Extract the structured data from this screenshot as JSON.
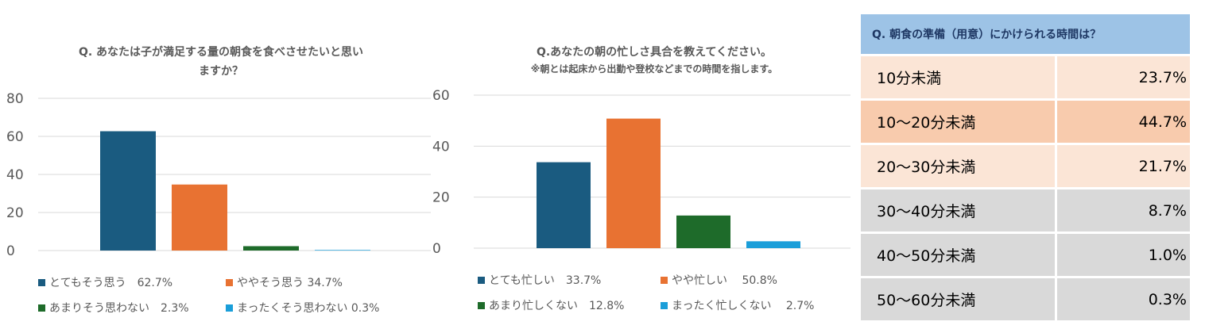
{
  "colors": {
    "navy": "#1a5b80",
    "orange": "#e87232",
    "green": "#1e6b2a",
    "cyan": "#1a9ed9",
    "row_peach": "#fbe5d6",
    "row_orange": "#f8cbad",
    "row_gray": "#d9d9d9",
    "header_blue": "#9dc3e6"
  },
  "chart_data": [
    {
      "type": "bar",
      "title_lines": [
        "Q. あなたは子が満足する量の朝食を食べさせたいと思い",
        "ますか？"
      ],
      "categories": [
        "とてもそう思う",
        "ややそう思う",
        "あまりそう思わない",
        "まったくそう思わない"
      ],
      "values": [
        62.7,
        34.7,
        2.3,
        0.3
      ],
      "ylim": [
        0,
        80
      ],
      "yticks": [
        0,
        20,
        40,
        60,
        80
      ],
      "legend": [
        {
          "label": "とてもそう思う　62.7%",
          "color": "#1a5b80"
        },
        {
          "label": "ややそう思う 34.7%",
          "color": "#e87232"
        },
        {
          "label": "あまりそう思わない　2.3%",
          "color": "#1e6b2a"
        },
        {
          "label": "まったくそう思わない 0.3%",
          "color": "#1a9ed9"
        }
      ],
      "grid": true,
      "legend_position": "bottom"
    },
    {
      "type": "bar",
      "title_lines": [
        "Q.あなたの朝の忙しさ具合を教えてください。"
      ],
      "subtitle": "※朝とは起床から出勤や登校などまでの時間を指します。",
      "categories": [
        "とても忙しい",
        "やや忙しい",
        "あまり忙しくない",
        "まったく忙しくない"
      ],
      "values": [
        33.7,
        50.8,
        12.8,
        2.7
      ],
      "ylim": [
        0,
        60
      ],
      "yticks": [
        0,
        20,
        40,
        60
      ],
      "legend": [
        {
          "label": "とても忙しい　33.7%",
          "color": "#1a5b80"
        },
        {
          "label": "やや忙しい　 50.8%",
          "color": "#e87232"
        },
        {
          "label": "あまり忙しくない　12.8%",
          "color": "#1e6b2a"
        },
        {
          "label": "まったく忙しくない　 2.7%",
          "color": "#1a9ed9"
        }
      ],
      "grid": true,
      "legend_position": "bottom"
    },
    {
      "type": "table",
      "title": "Q. 朝食の準備（用意）にかけられる時間は？",
      "rows": [
        {
          "label": "10分未満",
          "value": "23.7%",
          "color": "#fbe5d6"
        },
        {
          "label": "10～20分未満",
          "value": "44.7%",
          "color": "#f8cbad"
        },
        {
          "label": "20～30分未満",
          "value": "21.7%",
          "color": "#fbe5d6"
        },
        {
          "label": "30～40分未満",
          "value": "8.7%",
          "color": "#d9d9d9"
        },
        {
          "label": "40～50分未満",
          "value": "1.0%",
          "color": "#d9d9d9"
        },
        {
          "label": "50～60分未満",
          "value": "0.3%",
          "color": "#d9d9d9"
        }
      ]
    }
  ]
}
